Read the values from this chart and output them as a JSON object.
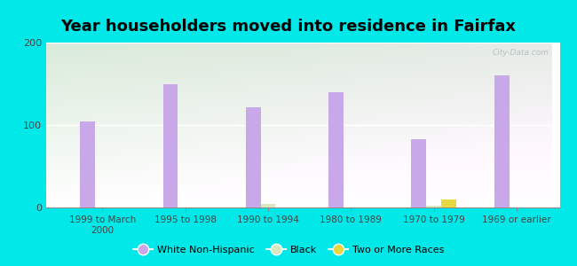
{
  "title": "Year householders moved into residence in Fairfax",
  "categories": [
    "1999 to March\n2000",
    "1995 to 1998",
    "1990 to 1994",
    "1980 to 1989",
    "1970 to 1979",
    "1969 or earlier"
  ],
  "white_non_hispanic": [
    104,
    150,
    122,
    140,
    83,
    160
  ],
  "black": [
    0,
    0,
    4,
    0,
    2,
    0
  ],
  "two_or_more_races": [
    0,
    0,
    0,
    0,
    10,
    0
  ],
  "bar_width": 0.18,
  "white_color": "#c8a8e8",
  "black_color": "#d8e8c0",
  "two_color": "#e8d840",
  "bg_outer": "#00e8e8",
  "ylim": [
    0,
    200
  ],
  "yticks": [
    0,
    100,
    200
  ],
  "title_fontsize": 13,
  "watermark": "City-Data.com"
}
